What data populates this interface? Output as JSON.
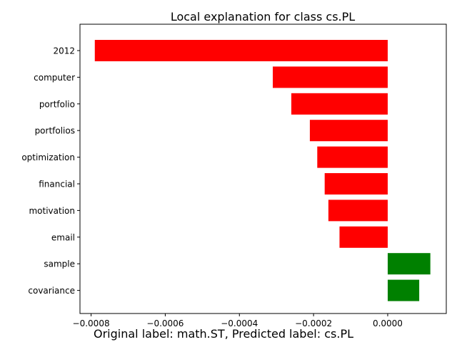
{
  "chart_data": {
    "type": "bar",
    "orientation": "horizontal",
    "title": "Local explanation for class cs.PL",
    "categories": [
      "2012",
      "computer",
      "portfolio",
      "portfolios",
      "optimization",
      "financial",
      "motivation",
      "email",
      "sample",
      "covariance"
    ],
    "values": [
      -0.00079,
      -0.00031,
      -0.00026,
      -0.00021,
      -0.00019,
      -0.00017,
      -0.00016,
      -0.00013,
      0.000115,
      8.5e-05
    ],
    "colors": [
      "#ff0000",
      "#ff0000",
      "#ff0000",
      "#ff0000",
      "#ff0000",
      "#ff0000",
      "#ff0000",
      "#ff0000",
      "#008000",
      "#008000"
    ],
    "x_ticks": [
      -0.0008,
      -0.0006,
      -0.0004,
      -0.0002,
      0.0
    ],
    "x_tick_labels": [
      "−0.0008",
      "−0.0006",
      "−0.0004",
      "−0.0002",
      "0.0000"
    ],
    "xlim": [
      -0.00083,
      0.000158
    ],
    "xlabel": "",
    "ylabel": "",
    "grid": false
  },
  "caption": "Original label: math.ST, Predicted label: cs.PL"
}
